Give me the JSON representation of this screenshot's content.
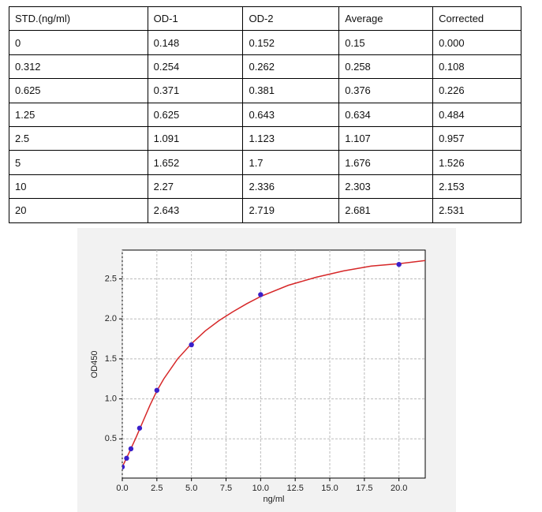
{
  "table": {
    "headers": [
      "STD.(ng/ml)",
      "OD-1",
      "OD-2",
      "Average",
      "Corrected"
    ],
    "rows": [
      [
        "0",
        "0.148",
        "0.152",
        "0.15",
        "0.000"
      ],
      [
        "0.312",
        "0.254",
        "0.262",
        "0.258",
        "0.108"
      ],
      [
        "0.625",
        "0.371",
        "0.381",
        "0.376",
        "0.226"
      ],
      [
        "1.25",
        "0.625",
        "0.643",
        "0.634",
        "0.484"
      ],
      [
        "2.5",
        "1.091",
        "1.123",
        "1.107",
        "0.957"
      ],
      [
        "5",
        "1.652",
        "1.7",
        "1.676",
        "1.526"
      ],
      [
        "10",
        "2.27",
        "2.336",
        "2.303",
        "2.153"
      ],
      [
        "20",
        "2.643",
        "2.719",
        "2.681",
        "2.531"
      ]
    ]
  },
  "chart_data": {
    "type": "scatter",
    "x_label": "ng/ml",
    "y_label": "OD450",
    "xlim": [
      0,
      21.9
    ],
    "ylim": [
      0.01,
      2.86
    ],
    "xticks": [
      {
        "value": 0,
        "label": "0.0"
      },
      {
        "value": 2.5,
        "label": "2.5"
      },
      {
        "value": 5,
        "label": "5.0"
      },
      {
        "value": 7.5,
        "label": "7.5"
      },
      {
        "value": 10,
        "label": "10.0"
      },
      {
        "value": 12.5,
        "label": "12.5"
      },
      {
        "value": 15,
        "label": "15.0"
      },
      {
        "value": 17.5,
        "label": "17.5"
      },
      {
        "value": 20,
        "label": "20.0"
      }
    ],
    "yticks": [
      {
        "value": 0.5,
        "label": "0.5"
      },
      {
        "value": 1,
        "label": "1.0"
      },
      {
        "value": 1.5,
        "label": "1.5"
      },
      {
        "value": 2,
        "label": "2.0"
      },
      {
        "value": 2.5,
        "label": "2.5"
      }
    ],
    "grid": true,
    "series": [
      {
        "type": "scatter",
        "color": "#3a1fc9",
        "x": [
          0,
          0.312,
          0.625,
          1.25,
          2.5,
          5,
          10,
          20
        ],
        "values": [
          0.15,
          0.258,
          0.376,
          0.634,
          1.107,
          1.676,
          2.303,
          2.681
        ]
      },
      {
        "type": "line",
        "color": "#d62728",
        "x": [
          0,
          0.5,
          1,
          1.5,
          2,
          2.5,
          3,
          4,
          5,
          6,
          7,
          8,
          9,
          10,
          12,
          14,
          16,
          18,
          20,
          21.9
        ],
        "values": [
          0.15,
          0.33,
          0.52,
          0.72,
          0.92,
          1.1,
          1.25,
          1.5,
          1.69,
          1.85,
          1.98,
          2.09,
          2.19,
          2.28,
          2.42,
          2.52,
          2.6,
          2.66,
          2.69,
          2.73
        ]
      }
    ]
  }
}
